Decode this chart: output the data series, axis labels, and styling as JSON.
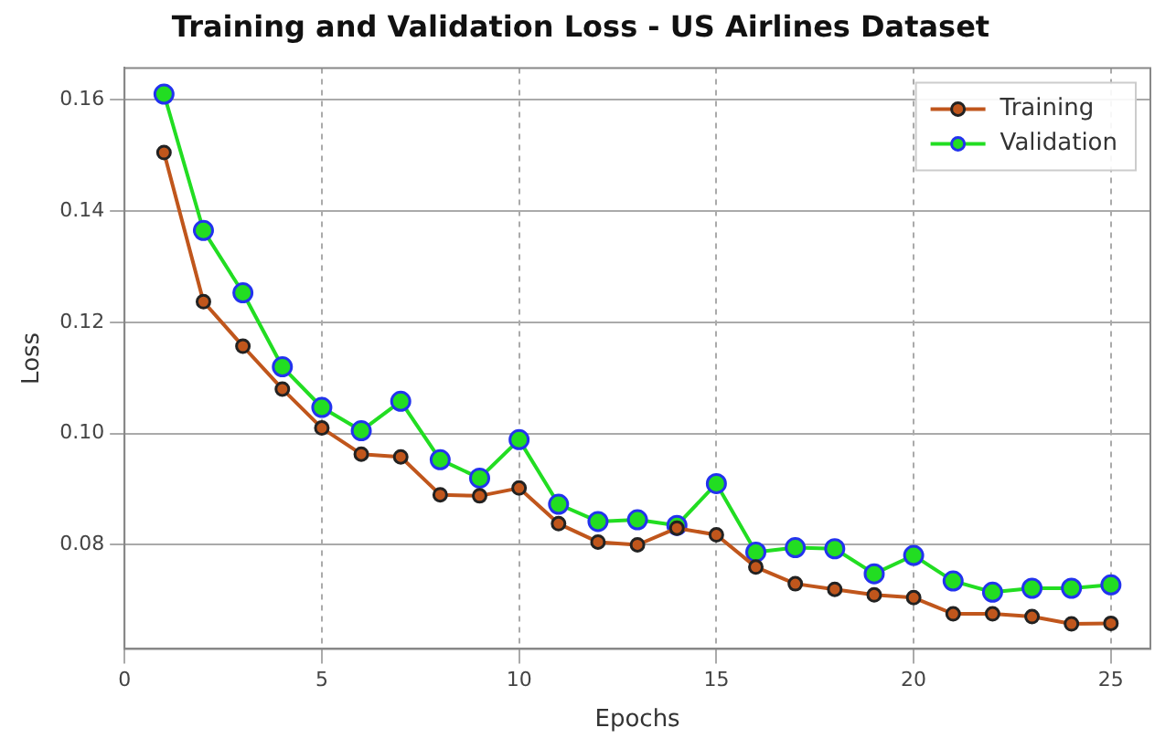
{
  "chart_data": {
    "type": "line",
    "title": "Training and Validation Loss - US Airlines Dataset",
    "xlabel": "Epochs",
    "ylabel": "Loss",
    "x": [
      1,
      2,
      3,
      4,
      5,
      6,
      7,
      8,
      9,
      10,
      11,
      12,
      13,
      14,
      15,
      16,
      17,
      18,
      19,
      20,
      21,
      22,
      23,
      24,
      25
    ],
    "series": [
      {
        "name": "Training",
        "color": "#c0561c",
        "values": [
          0.1505,
          0.1237,
          0.1157,
          0.108,
          0.101,
          0.0963,
          0.0958,
          0.089,
          0.0888,
          0.0902,
          0.0838,
          0.0805,
          0.08,
          0.083,
          0.0818,
          0.076,
          0.073,
          0.072,
          0.071,
          0.0705,
          0.0676,
          0.0676,
          0.0671,
          0.0658,
          0.0659
        ]
      },
      {
        "name": "Validation",
        "color": "#22dd22",
        "values": [
          0.161,
          0.1365,
          0.1253,
          0.112,
          0.1047,
          0.1005,
          0.1058,
          0.0953,
          0.092,
          0.0989,
          0.0873,
          0.0842,
          0.0845,
          0.0835,
          0.091,
          0.0787,
          0.0795,
          0.0793,
          0.0748,
          0.0781,
          0.0735,
          0.0715,
          0.0722,
          0.0722,
          0.0728
        ]
      }
    ],
    "xlim": [
      0,
      26
    ],
    "xticks": [
      0,
      5,
      10,
      15,
      20,
      25
    ],
    "ylim": [
      0.0613,
      0.1657
    ],
    "yticks": [
      {
        "value": 0.08,
        "label": "0.08"
      },
      {
        "value": 0.1,
        "label": "0.10"
      },
      {
        "value": 0.12,
        "label": "0.12"
      },
      {
        "value": 0.14,
        "label": "0.14"
      },
      {
        "value": 0.16,
        "label": "0.16"
      }
    ],
    "grid": true,
    "legend": "top right",
    "marker": "circle",
    "line_style": "solid"
  }
}
